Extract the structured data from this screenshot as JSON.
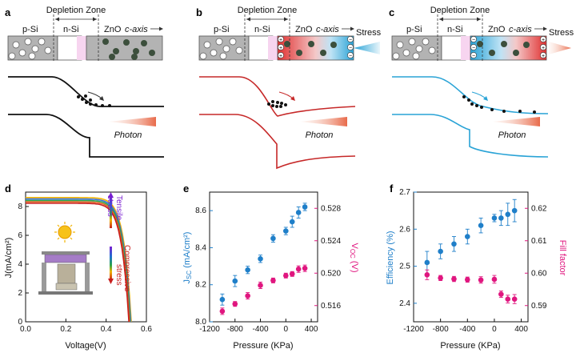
{
  "panels": {
    "a": {
      "letter": "a"
    },
    "b": {
      "letter": "b",
      "stress": "Stress"
    },
    "c": {
      "letter": "c",
      "stress": "Stress"
    }
  },
  "device": {
    "depletion": "Depletion Zone",
    "psi": "p-Si",
    "nsi": "n-Si",
    "zno": "ZnO",
    "caxis": "c-axis",
    "photon": "Photon"
  },
  "colors": {
    "black": "#111111",
    "red": "#c62828",
    "blue": "#29a3d6",
    "pink": "#e0167f",
    "jvblue": "#1f7fc9"
  },
  "chart_data": [
    {
      "id": "d",
      "type": "line",
      "xlabel": "Voltage(V)",
      "ylabel": "J(mA/cm²)",
      "xlim": [
        0,
        0.6
      ],
      "ylim": [
        0,
        9
      ],
      "xticks": [
        "0.0",
        "0.2",
        "0.4",
        "0.6"
      ],
      "yticks": [
        "0",
        "2",
        "4",
        "6",
        "8"
      ],
      "annotations": {
        "tensile": "Tensile",
        "stress_t": "stress",
        "compressive": "Compressive",
        "stress_c": "stress"
      },
      "series": [
        {
          "color": "#f2b400",
          "jsc": 8.62
        },
        {
          "color": "#3a6fd8",
          "jsc": 8.52
        },
        {
          "color": "#2aa44a",
          "jsc": 8.42
        },
        {
          "color": "#e06020",
          "jsc": 8.32
        },
        {
          "color": "#c81e1e",
          "jsc": 8.22
        }
      ]
    },
    {
      "id": "e",
      "type": "scatter",
      "xlabel": "Pressure (KPa)",
      "ylabel": "J_SC (mA/cm²)",
      "y2label": "V_OC (V)",
      "xlim": [
        -1200,
        500
      ],
      "ylim": [
        8.0,
        8.7
      ],
      "y2lim": [
        0.514,
        0.53
      ],
      "xticks": [
        "-1200",
        "-800",
        "-400",
        "0",
        "400"
      ],
      "yticks": [
        "8.0",
        "8.2",
        "8.4",
        "8.6"
      ],
      "y2ticks": [
        "0.516",
        "0.520",
        "0.524",
        "0.528"
      ],
      "series": [
        {
          "axis": "left",
          "color": "#1f7fc9",
          "x": [
            -1000,
            -800,
            -600,
            -400,
            -200,
            0,
            100,
            200,
            300
          ],
          "y": [
            8.12,
            8.22,
            8.28,
            8.34,
            8.45,
            8.49,
            8.54,
            8.59,
            8.62
          ],
          "err": [
            0.03,
            0.03,
            0.02,
            0.02,
            0.02,
            0.02,
            0.03,
            0.03,
            0.02
          ]
        },
        {
          "axis": "right",
          "color": "#e0167f",
          "x": [
            -1000,
            -800,
            -600,
            -400,
            -200,
            0,
            100,
            200,
            300
          ],
          "y": [
            0.5153,
            0.5162,
            0.5172,
            0.5185,
            0.5191,
            0.5197,
            0.5199,
            0.5205,
            0.5206
          ],
          "err": [
            0.0004,
            0.0003,
            0.0004,
            0.0004,
            0.0003,
            0.0003,
            0.0003,
            0.0004,
            0.0004
          ]
        }
      ]
    },
    {
      "id": "f",
      "type": "scatter",
      "xlabel": "Pressure (KPa)",
      "ylabel": "Efficiency (%)",
      "y2label": "Fill factor",
      "xlim": [
        -1200,
        500
      ],
      "ylim": [
        2.35,
        2.7
      ],
      "y2lim": [
        0.585,
        0.625
      ],
      "xticks": [
        "-1200",
        "-800",
        "-400",
        "0",
        "400"
      ],
      "yticks": [
        "2.4",
        "2.5",
        "2.6",
        "2.7"
      ],
      "y2ticks": [
        "0.59",
        "0.60",
        "0.61",
        "0.62"
      ],
      "series": [
        {
          "axis": "left",
          "color": "#1f7fc9",
          "x": [
            -1000,
            -800,
            -600,
            -400,
            -200,
            0,
            100,
            200,
            300
          ],
          "y": [
            2.51,
            2.54,
            2.56,
            2.58,
            2.61,
            2.63,
            2.63,
            2.64,
            2.65
          ],
          "err": [
            0.03,
            0.02,
            0.02,
            0.02,
            0.02,
            0.01,
            0.02,
            0.03,
            0.03
          ]
        },
        {
          "axis": "right",
          "color": "#e0167f",
          "x": [
            -1000,
            -800,
            -600,
            -400,
            -200,
            0,
            100,
            200,
            300
          ],
          "y": [
            0.5995,
            0.5985,
            0.5982,
            0.598,
            0.5979,
            0.5981,
            0.5935,
            0.592,
            0.592
          ],
          "err": [
            0.0015,
            0.0008,
            0.0008,
            0.0008,
            0.001,
            0.0012,
            0.001,
            0.0012,
            0.0014
          ]
        }
      ]
    }
  ]
}
